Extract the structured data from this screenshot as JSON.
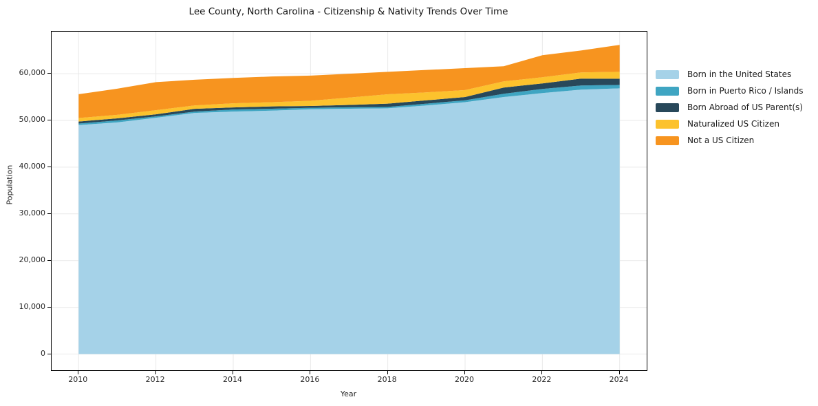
{
  "chart_data": {
    "type": "area",
    "stacked": true,
    "title": "Lee County, North Carolina - Citizenship & Nativity Trends Over Time",
    "xlabel": "Year",
    "ylabel": "Population",
    "x": [
      2010,
      2011,
      2012,
      2013,
      2014,
      2015,
      2016,
      2017,
      2018,
      2019,
      2020,
      2021,
      2022,
      2023,
      2024
    ],
    "series": [
      {
        "name": "Born in the United States",
        "color": "#a5d2e8",
        "values": [
          49000,
          49570,
          50570,
          51600,
          51900,
          52100,
          52400,
          52500,
          52600,
          53200,
          53900,
          55000,
          55860,
          56600,
          56860
        ]
      },
      {
        "name": "Born in Puerto Rico / Islands",
        "color": "#3fa5c2",
        "values": [
          330,
          430,
          290,
          300,
          440,
          400,
          300,
          320,
          300,
          400,
          400,
          700,
          880,
          880,
          740
        ]
      },
      {
        "name": "Born Abroad of US Parent(s)",
        "color": "#28485a",
        "values": [
          440,
          450,
          440,
          580,
          440,
          500,
          400,
          500,
          700,
          700,
          700,
          1340,
          1180,
          1470,
          1330
        ]
      },
      {
        "name": "Naturalized US Citizen",
        "color": "#fcc22d",
        "values": [
          740,
          750,
          890,
          720,
          890,
          900,
          1100,
          1580,
          2000,
          1700,
          1500,
          1320,
          1320,
          1320,
          1480
        ]
      },
      {
        "name": "Not a US Citizen",
        "color": "#f7941f",
        "values": [
          5100,
          5600,
          6010,
          5500,
          5430,
          5500,
          5400,
          5100,
          4800,
          4800,
          4700,
          3240,
          4710,
          4700,
          5760
        ]
      }
    ],
    "xticks": [
      2010,
      2012,
      2014,
      2016,
      2018,
      2020,
      2022,
      2024
    ],
    "yticks": [
      0,
      10000,
      20000,
      30000,
      40000,
      50000,
      60000
    ],
    "xlim": [
      2009.3,
      2024.7
    ],
    "ylim": [
      -3460,
      69000
    ],
    "grid": true,
    "grid_color": "#e9e9e9",
    "spine_color": "#000000",
    "legend_position": "right"
  }
}
